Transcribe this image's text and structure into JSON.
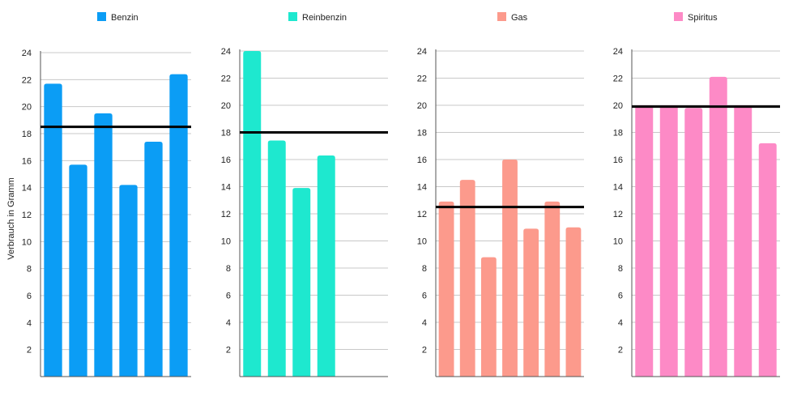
{
  "chart_data": {
    "type": "bar",
    "ylabel": "Verbrauch in Gramm",
    "panels": [
      {
        "name": "Benzin",
        "color": "#0b9df5",
        "ylim": [
          0,
          24
        ],
        "yticks": [
          "2",
          "4",
          "6",
          "8",
          "10",
          "12",
          "14",
          "16",
          "18",
          "20",
          "22",
          "24"
        ],
        "values": [
          21.7,
          15.7,
          19.5,
          14.2,
          17.4,
          22.4
        ],
        "slots": 6,
        "average": 18.5
      },
      {
        "name": "Reinbenzin",
        "color": "#1ee8cf",
        "ylim": [
          0,
          24
        ],
        "yticks": [
          "2",
          "4",
          "6",
          "8",
          "10",
          "12",
          "14",
          "16",
          "18",
          "20",
          "22",
          "24"
        ],
        "values": [
          24.0,
          17.4,
          13.9,
          16.3
        ],
        "slots": 6,
        "average": 18.0
      },
      {
        "name": "Gas",
        "color": "#fc9a8c",
        "ylim": [
          0,
          24
        ],
        "yticks": [
          "2",
          "4",
          "6",
          "8",
          "10",
          "12",
          "14",
          "16",
          "18",
          "20",
          "22",
          "24"
        ],
        "values": [
          12.9,
          14.5,
          8.8,
          16.0,
          10.9,
          12.9,
          11.0
        ],
        "slots": 7,
        "average": 12.5
      },
      {
        "name": "Spiritus",
        "color": "#fd8ac6",
        "ylim": [
          0,
          24
        ],
        "yticks": [
          "2",
          "4",
          "6",
          "8",
          "10",
          "12",
          "14",
          "16",
          "18",
          "20",
          "22",
          "24"
        ],
        "values": [
          20.0,
          20.0,
          19.8,
          22.1,
          20.0,
          17.2
        ],
        "slots": 6,
        "average": 19.9
      }
    ]
  }
}
